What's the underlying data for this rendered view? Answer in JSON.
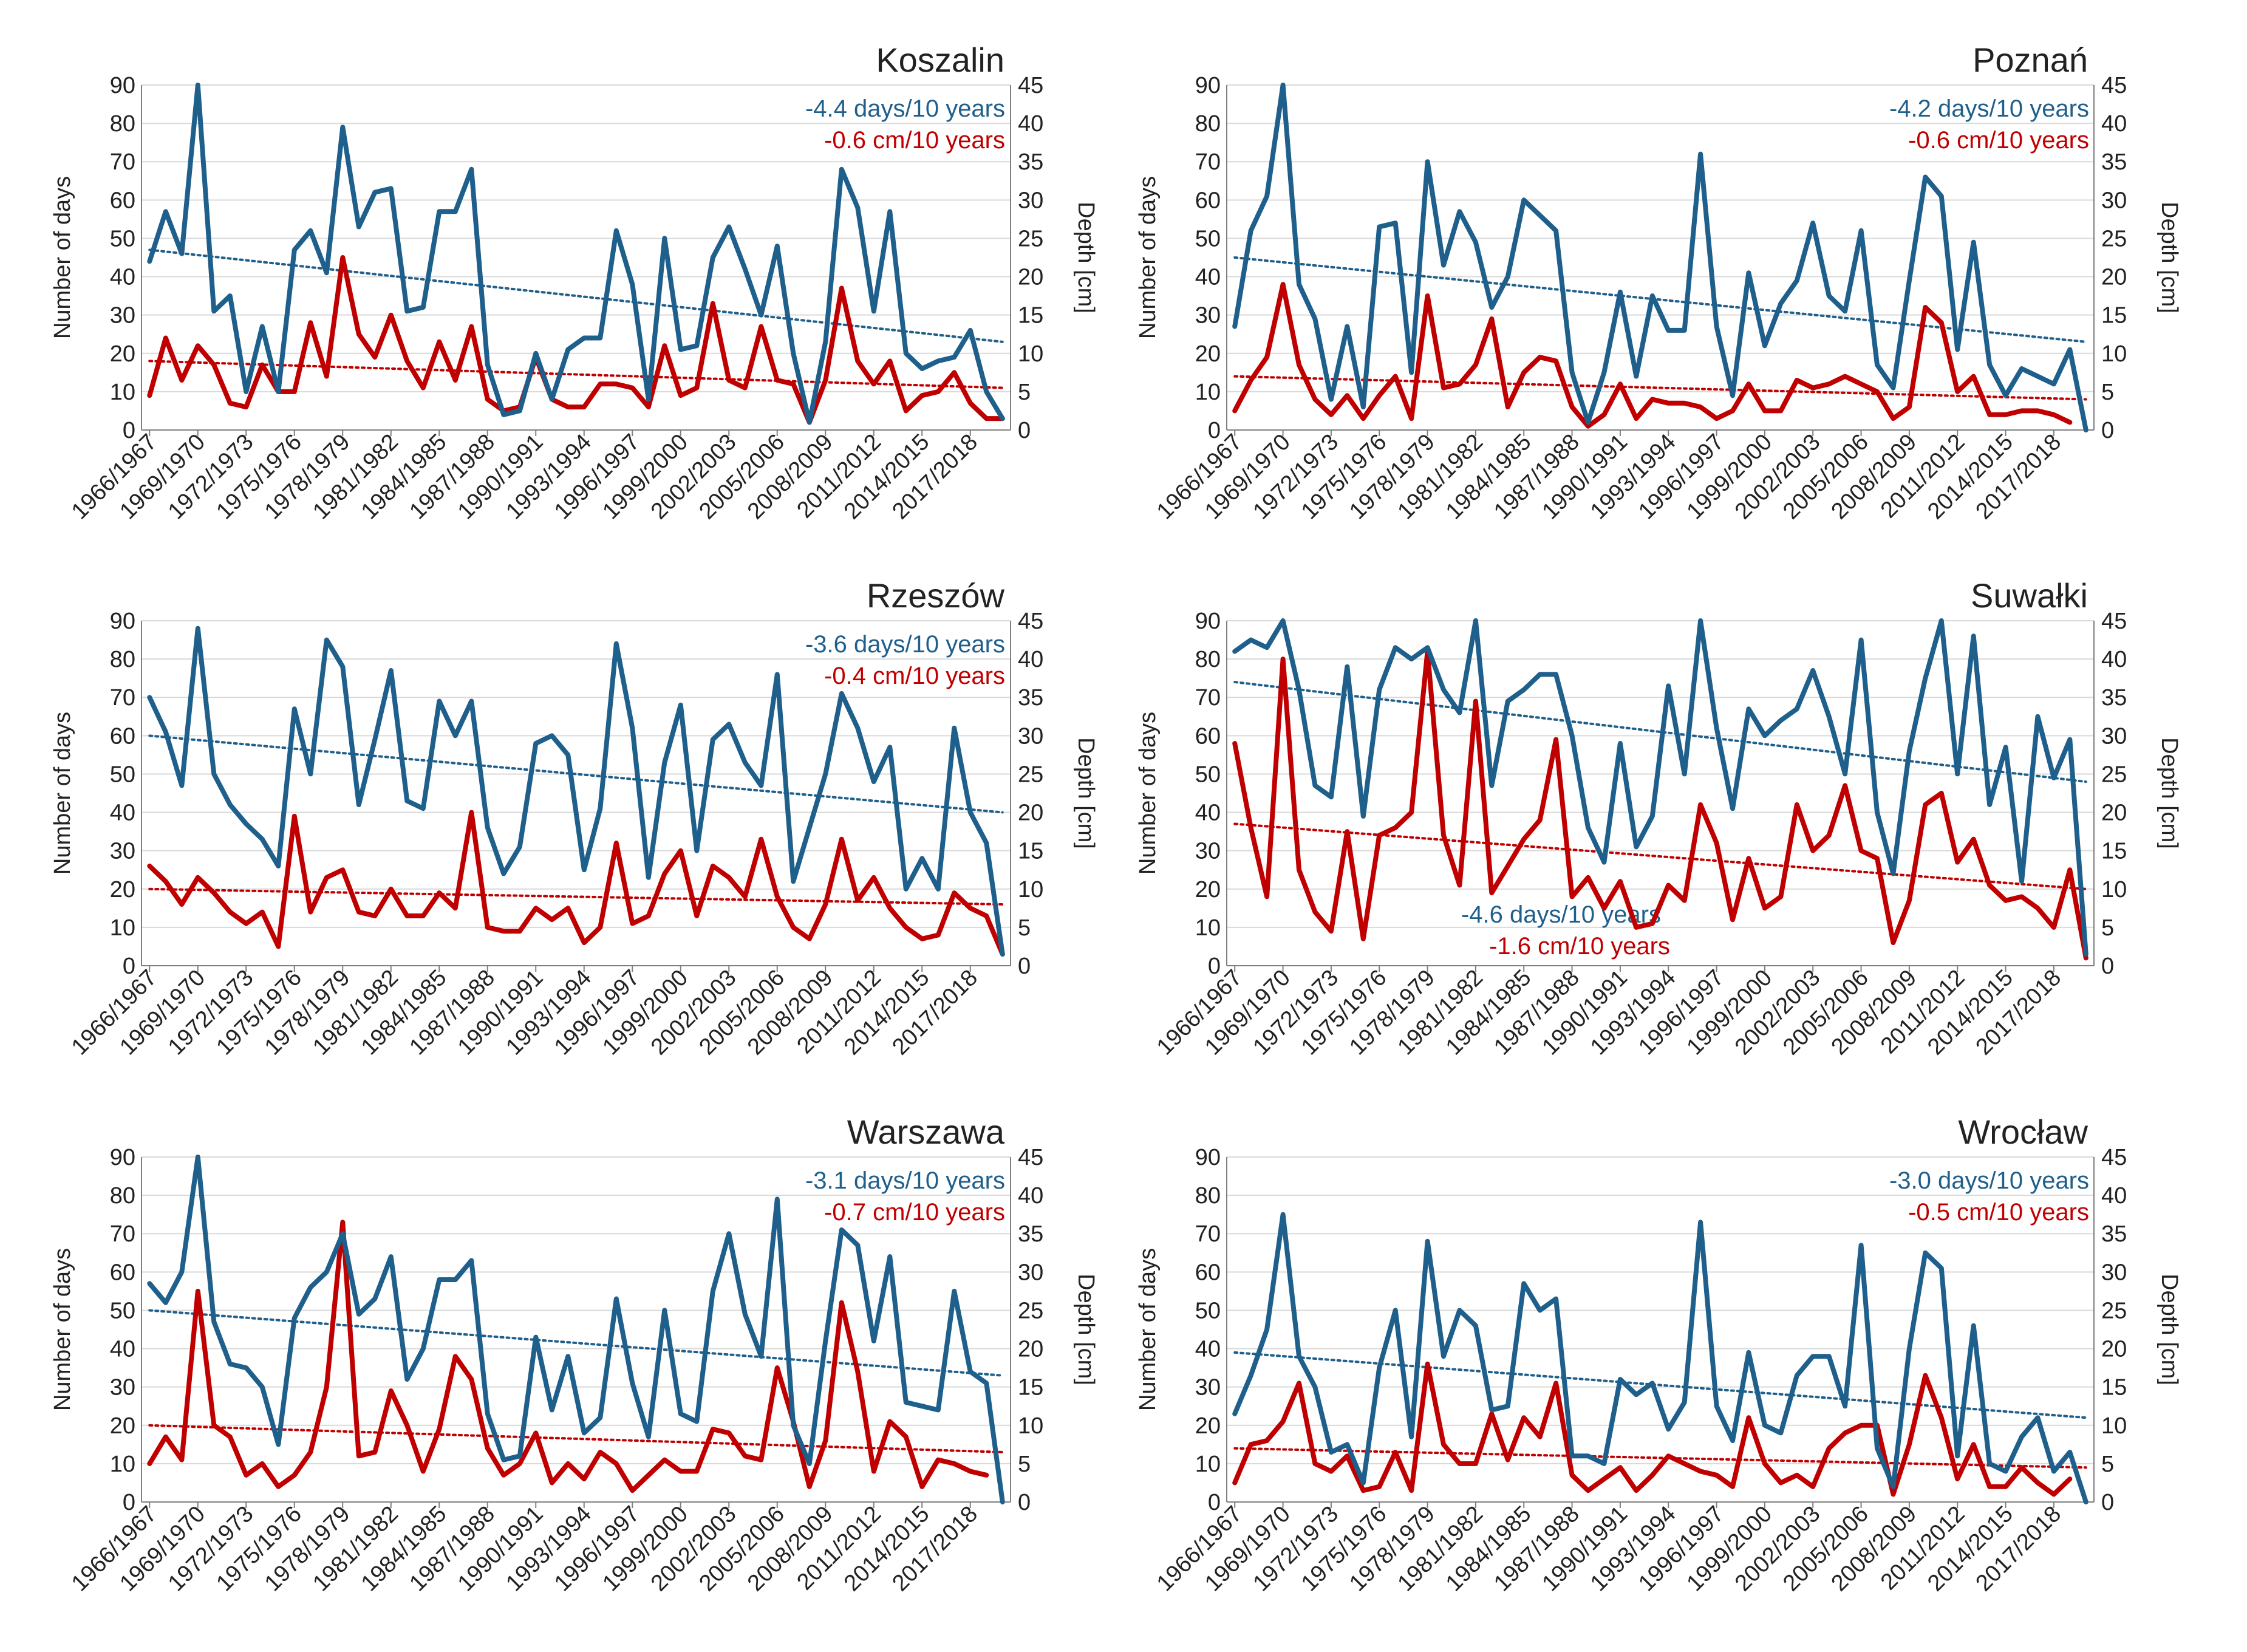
{
  "figure": {
    "colors": {
      "days": "#1F5F8B",
      "depth": "#C00000",
      "grid": "#D9D9D9",
      "axis": "#7F7F7F"
    },
    "left_axis_label": "Number of days",
    "right_axis_label": "Depth [cm]",
    "x_tick_labels": [
      "1966/1967",
      "1969/1970",
      "1972/1973",
      "1975/1976",
      "1978/1979",
      "1981/1982",
      "1984/1985",
      "1987/1988",
      "1990/1991",
      "1993/1994",
      "1996/1997",
      "1999/2000",
      "2002/2003",
      "2005/2006",
      "2008/2009",
      "2011/2012",
      "2014/2015",
      "2017/2018"
    ],
    "y_left_ticks": [
      "0",
      "10",
      "20",
      "30",
      "40",
      "50",
      "60",
      "70",
      "80",
      "90"
    ],
    "y_right_ticks": [
      "0",
      "5",
      "10",
      "15",
      "20",
      "25",
      "30",
      "35",
      "40",
      "45"
    ]
  },
  "chart_data": [
    {
      "type": "line",
      "title": "Koszalin",
      "x_start_season": "1966/1967",
      "x_end_season": "2019/2020",
      "ylim": [
        0,
        90
      ],
      "y2lim": [
        0,
        45
      ],
      "grid": true,
      "series": [
        {
          "axis": "left",
          "values": [
            44,
            57,
            46,
            90,
            31,
            35,
            10,
            27,
            10,
            47,
            52,
            41,
            79,
            53,
            62,
            63,
            31,
            32,
            57,
            57,
            68,
            17,
            4,
            5,
            20,
            8,
            21,
            24,
            24,
            52,
            38,
            8,
            50,
            21,
            22,
            45,
            53,
            42,
            30,
            48,
            20,
            2,
            23,
            68,
            58,
            31,
            57,
            20,
            16,
            18,
            19,
            26,
            10,
            3
          ]
        },
        {
          "axis": "right",
          "values": [
            4.5,
            12,
            6.5,
            11,
            8.5,
            3.5,
            3,
            8.5,
            5,
            5,
            14,
            7,
            22.5,
            12.5,
            9.5,
            15,
            9,
            5.5,
            11.5,
            6.5,
            13.5,
            4,
            2.5,
            3,
            9.5,
            4,
            3,
            3,
            6,
            6,
            5.5,
            3,
            11,
            4.5,
            5.5,
            16.5,
            6.5,
            5.5,
            13.5,
            6.5,
            6,
            1,
            6.5,
            18.5,
            9,
            6,
            9,
            2.5,
            4.5,
            5,
            7.5,
            3.5,
            1.5,
            1.5
          ]
        }
      ],
      "trends": [
        {
          "axis": "left",
          "start": 47,
          "end": 23,
          "label": "-4.4 days/10 years"
        },
        {
          "axis": "right",
          "start": 9,
          "end": 5.5,
          "label": "-0.6 cm/10 years"
        }
      ]
    },
    {
      "type": "line",
      "title": "Poznań",
      "x_start_season": "1966/1967",
      "x_end_season": "2019/2020",
      "ylim": [
        0,
        90
      ],
      "y2lim": [
        0,
        45
      ],
      "grid": true,
      "series": [
        {
          "axis": "left",
          "values": [
            27,
            52,
            61,
            90,
            38,
            29,
            8,
            27,
            6,
            53,
            54,
            15,
            70,
            43,
            57,
            49,
            32,
            40,
            60,
            56,
            52,
            15,
            2,
            15,
            36,
            14,
            35,
            26,
            26,
            72,
            27,
            9,
            41,
            22,
            33,
            39,
            54,
            35,
            31,
            52,
            17,
            11,
            39,
            66,
            61,
            21,
            49,
            17,
            9,
            16,
            14,
            12,
            21,
            0
          ]
        },
        {
          "axis": "right",
          "values": [
            2.5,
            6.5,
            9.5,
            19,
            8.5,
            4,
            2,
            4.5,
            1.5,
            4.5,
            7,
            1.5,
            17.5,
            5.5,
            6,
            8.5,
            14.5,
            3,
            7.5,
            9.5,
            9,
            3,
            0.5,
            2,
            6,
            1.5,
            4,
            3.5,
            3.5,
            3,
            1.5,
            2.5,
            6,
            2.5,
            2.5,
            6.5,
            5.5,
            6,
            7,
            6,
            5,
            1.5,
            3,
            16,
            14,
            5,
            7,
            2,
            2,
            2.5,
            2.5,
            2,
            1,
            null
          ]
        }
      ],
      "trends": [
        {
          "axis": "left",
          "start": 45,
          "end": 23,
          "label": "-4.2 days/10 years"
        },
        {
          "axis": "right",
          "start": 7,
          "end": 4,
          "label": "-0.6 cm/10 years"
        }
      ]
    },
    {
      "type": "line",
      "title": "Rzeszów",
      "x_start_season": "1966/1967",
      "x_end_season": "2019/2020",
      "ylim": [
        0,
        90
      ],
      "y2lim": [
        0,
        45
      ],
      "grid": true,
      "series": [
        {
          "axis": "left",
          "values": [
            70,
            61,
            47,
            88,
            50,
            42,
            37,
            33,
            26,
            67,
            50,
            85,
            78,
            42,
            59,
            77,
            43,
            41,
            69,
            60,
            69,
            36,
            24,
            31,
            58,
            60,
            55,
            25,
            41,
            84,
            62,
            23,
            53,
            68,
            30,
            59,
            63,
            53,
            47,
            76,
            22,
            36,
            50,
            71,
            62,
            48,
            57,
            20,
            28,
            20,
            62,
            40,
            32,
            3
          ]
        },
        {
          "axis": "right",
          "values": [
            13,
            11,
            8,
            11.5,
            9.5,
            7,
            5.5,
            7,
            2.5,
            19.5,
            7,
            11.5,
            12.5,
            7,
            6.5,
            10,
            6.5,
            6.5,
            9.5,
            7.5,
            20,
            5,
            4.5,
            4.5,
            7.5,
            6,
            7.5,
            3,
            5,
            16,
            5.5,
            6.5,
            12,
            15,
            6.5,
            13,
            11.5,
            9,
            16.5,
            9,
            5,
            3.5,
            8,
            16.5,
            8.5,
            11.5,
            7.5,
            5,
            3.5,
            4,
            9.5,
            7.5,
            6.5,
            1.5
          ]
        }
      ],
      "trends": [
        {
          "axis": "left",
          "start": 60,
          "end": 40,
          "label": "-3.6 days/10 years"
        },
        {
          "axis": "right",
          "start": 10,
          "end": 8,
          "label": "-0.4 cm/10 years"
        }
      ]
    },
    {
      "type": "line",
      "title": "Suwałki",
      "x_start_season": "1966/1967",
      "x_end_season": "2019/2020",
      "ylim": [
        0,
        90
      ],
      "y2lim": [
        0,
        45
      ],
      "grid": true,
      "series": [
        {
          "axis": "left",
          "values": [
            82,
            85,
            83,
            90,
            72,
            47,
            44,
            78,
            39,
            72,
            83,
            80,
            83,
            72,
            66,
            90,
            47,
            69,
            72,
            76,
            76,
            60,
            36,
            27,
            58,
            31,
            39,
            73,
            50,
            90,
            62,
            41,
            67,
            60,
            64,
            67,
            77,
            65,
            50,
            85,
            40,
            24,
            56,
            75,
            90,
            50,
            86,
            42,
            57,
            22,
            65,
            49,
            59,
            3
          ]
        },
        {
          "axis": "right",
          "values": [
            29,
            18,
            9,
            40,
            12.5,
            7,
            4.5,
            17.5,
            3.5,
            17,
            18,
            20,
            41,
            17,
            10.5,
            34.5,
            9.5,
            13,
            16.5,
            19,
            29.5,
            9,
            11.5,
            7.5,
            11,
            5,
            5.5,
            10.5,
            8.5,
            21,
            16,
            6,
            14,
            7.5,
            9,
            21,
            15,
            17,
            23.5,
            15,
            14,
            3,
            8.5,
            21,
            22.5,
            13.5,
            16.5,
            10.5,
            8.5,
            9,
            7.5,
            5,
            12.5,
            1
          ]
        }
      ],
      "trends": [
        {
          "axis": "left",
          "start": 74,
          "end": 48,
          "label": "-4.6 days/10 years"
        },
        {
          "axis": "right",
          "start": 18.5,
          "end": 10,
          "label": "-1.6 cm/10 years"
        }
      ]
    },
    {
      "type": "line",
      "title": "Warszawa",
      "x_start_season": "1966/1967",
      "x_end_season": "2019/2020",
      "ylim": [
        0,
        90
      ],
      "y2lim": [
        0,
        45
      ],
      "grid": true,
      "series": [
        {
          "axis": "left",
          "values": [
            57,
            52,
            60,
            90,
            47,
            36,
            35,
            30,
            15,
            48,
            56,
            60,
            70,
            49,
            53,
            64,
            32,
            40,
            58,
            58,
            63,
            23,
            11,
            12,
            43,
            24,
            38,
            18,
            22,
            53,
            31,
            17,
            50,
            23,
            21,
            55,
            70,
            49,
            38,
            79,
            20,
            10,
            42,
            71,
            67,
            42,
            64,
            26,
            25,
            24,
            55,
            34,
            31,
            0
          ]
        },
        {
          "axis": "right",
          "values": [
            5,
            8.5,
            5.5,
            27.5,
            10,
            8.5,
            3.5,
            5,
            2,
            3.5,
            6.5,
            15,
            36.5,
            6,
            6.5,
            14.5,
            10,
            4,
            9.5,
            19,
            16,
            7,
            3.5,
            5,
            9,
            2.5,
            5,
            3,
            6.5,
            5,
            1.5,
            3.5,
            5.5,
            4,
            4,
            9.5,
            9,
            6,
            5.5,
            17.5,
            10.5,
            2,
            8,
            26,
            17,
            4,
            10.5,
            8.5,
            2,
            5.5,
            5,
            4,
            3.5,
            null
          ]
        }
      ],
      "trends": [
        {
          "axis": "left",
          "start": 50,
          "end": 33,
          "label": "-3.1 days/10 years"
        },
        {
          "axis": "right",
          "start": 10,
          "end": 6.5,
          "label": "-0.7 cm/10 years"
        }
      ]
    },
    {
      "type": "line",
      "title": "Wrocław",
      "x_start_season": "1966/1967",
      "x_end_season": "2019/2020",
      "ylim": [
        0,
        90
      ],
      "y2lim": [
        0,
        45
      ],
      "grid": true,
      "series": [
        {
          "axis": "left",
          "values": [
            23,
            33,
            45,
            75,
            38,
            30,
            13,
            15,
            5,
            35,
            50,
            17,
            68,
            38,
            50,
            46,
            24,
            25,
            57,
            50,
            53,
            12,
            12,
            10,
            32,
            28,
            31,
            19,
            26,
            73,
            25,
            16,
            39,
            20,
            18,
            33,
            38,
            38,
            25,
            67,
            14,
            4,
            40,
            65,
            61,
            12,
            46,
            10,
            8,
            17,
            22,
            8,
            13,
            0
          ]
        },
        {
          "axis": "right",
          "values": [
            2.5,
            7.5,
            8,
            10.5,
            15.5,
            5,
            4,
            6,
            1.5,
            2,
            6.5,
            1.5,
            18,
            7.5,
            5,
            5,
            11.5,
            5.5,
            11,
            8.5,
            15.5,
            3.5,
            1.5,
            3,
            4.5,
            1.5,
            3.5,
            6,
            5,
            4,
            3.5,
            2,
            11,
            5,
            2.5,
            3.5,
            2,
            7,
            9,
            10,
            10,
            1,
            7.5,
            16.5,
            11,
            3,
            7.5,
            2,
            2,
            4.5,
            2.5,
            1,
            3,
            null
          ]
        }
      ],
      "trends": [
        {
          "axis": "left",
          "start": 39,
          "end": 22,
          "label": "-3.0 days/10 years"
        },
        {
          "axis": "right",
          "start": 7,
          "end": 4.5,
          "label": "-0.5 cm/10 years"
        }
      ]
    }
  ]
}
